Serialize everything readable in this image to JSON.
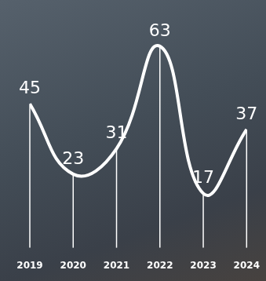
{
  "chart_data": {
    "type": "line",
    "categories": [
      "2019",
      "2020",
      "2021",
      "2022",
      "2023",
      "2024"
    ],
    "values": [
      45,
      23,
      31,
      63,
      17,
      37
    ],
    "color": "#ffffff",
    "ylim": [
      0,
      75
    ],
    "grid": false,
    "data_labels": true,
    "tick_labels": "x"
  }
}
